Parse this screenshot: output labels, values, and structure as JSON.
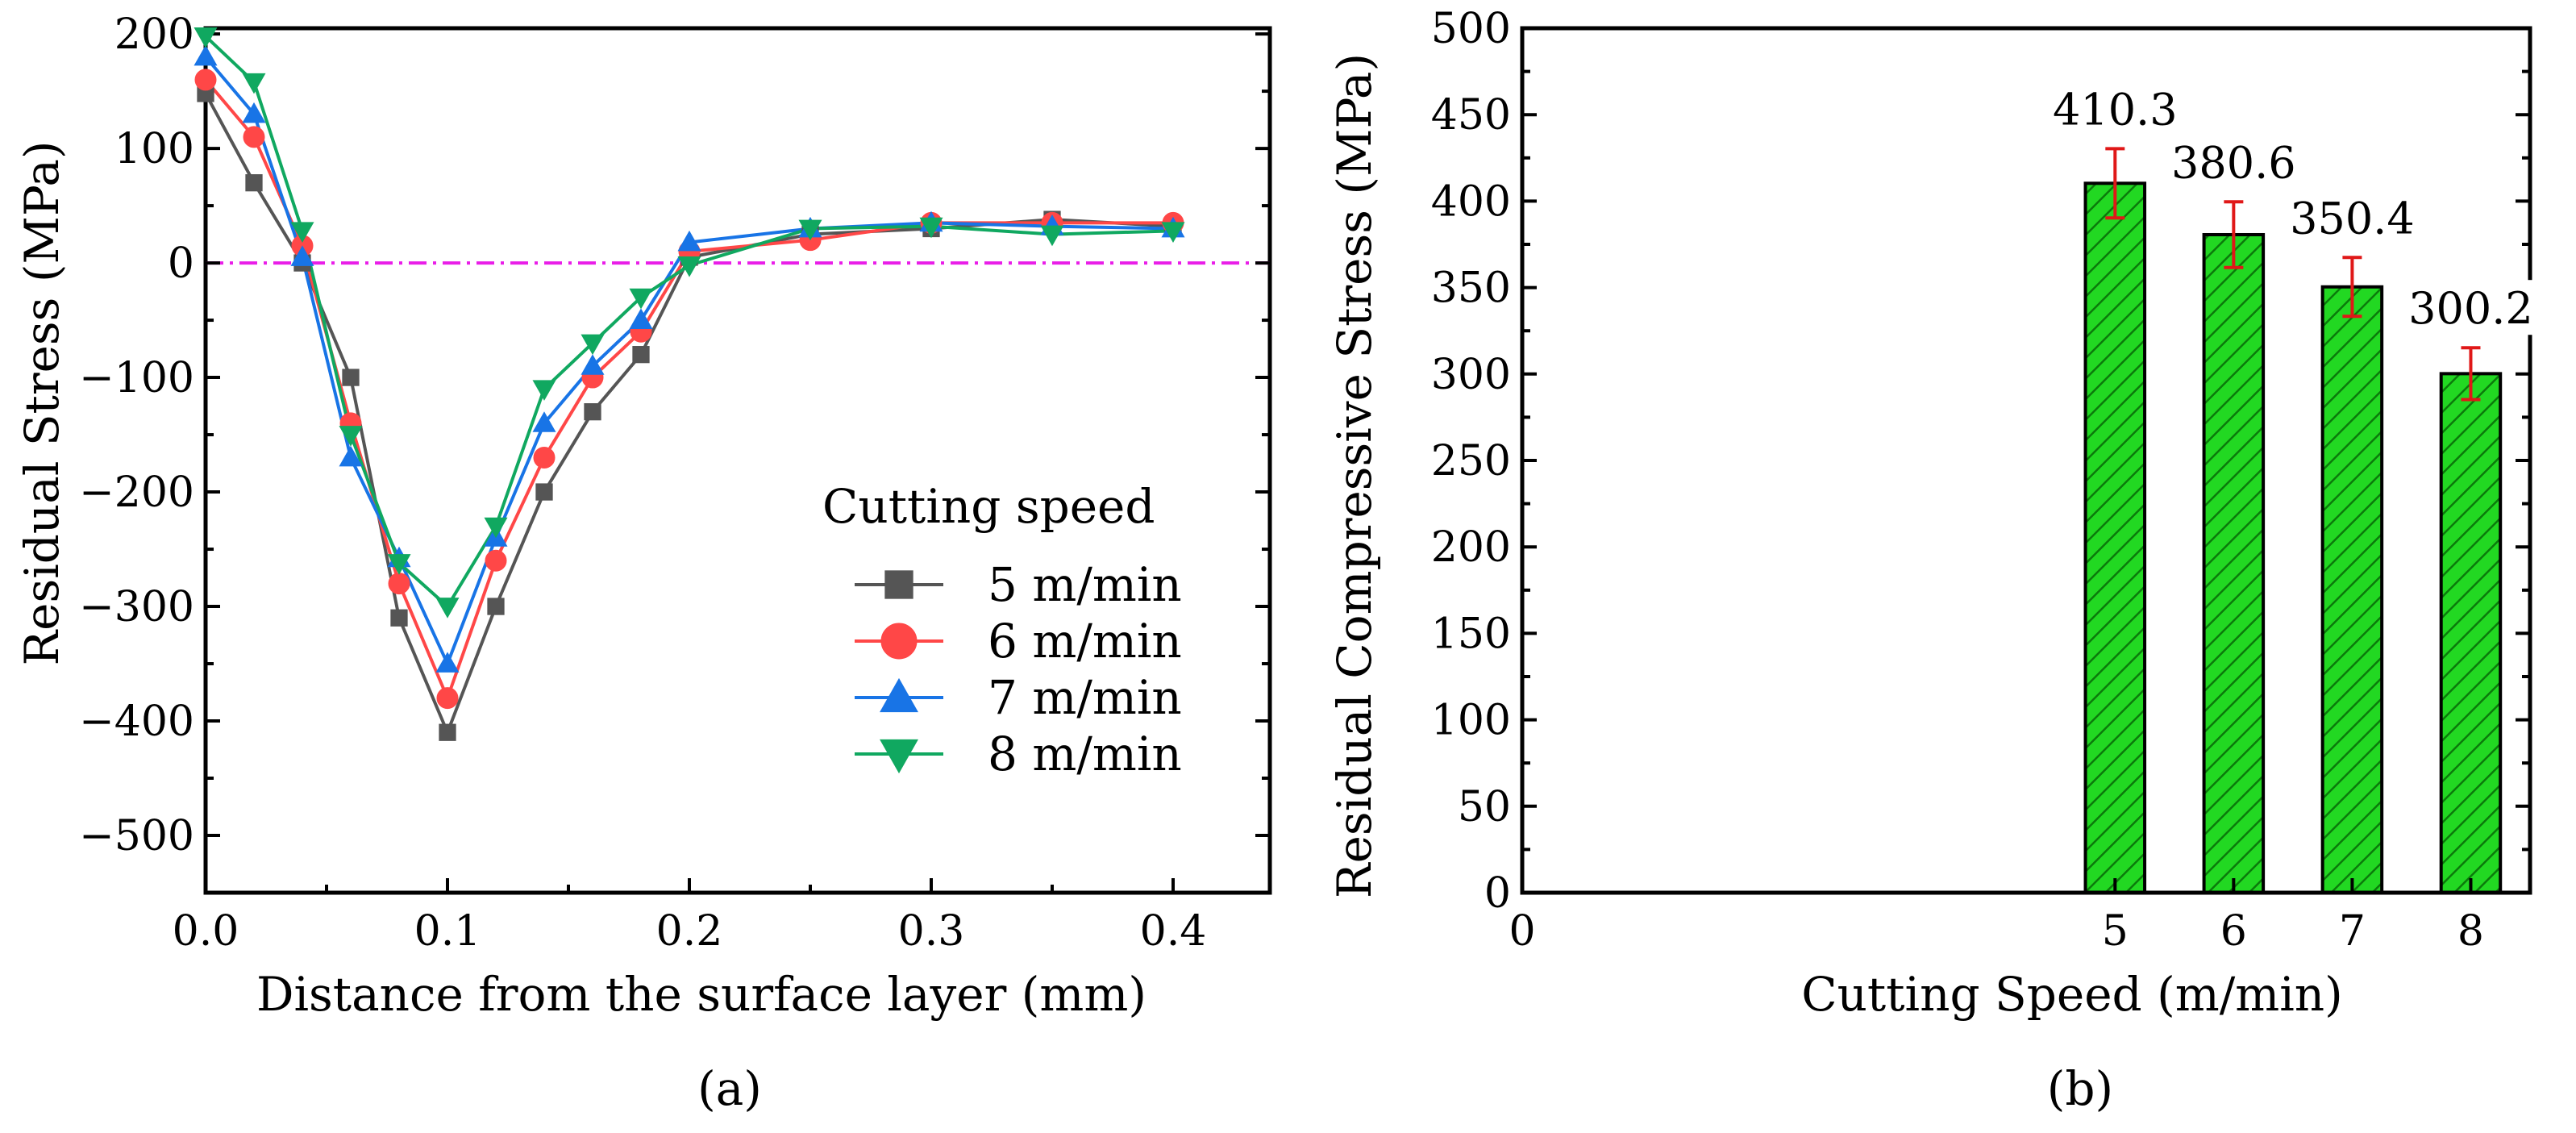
{
  "chart_data": [
    {
      "type": "line",
      "panel_label": "(a)",
      "title": "",
      "xlabel": "Distance from the surface layer (mm)",
      "ylabel": "Residual Stress (MPa)",
      "xlim": [
        0.0,
        0.44
      ],
      "ylim": [
        -550,
        205
      ],
      "xticks": [
        0.0,
        0.1,
        0.2,
        0.3,
        0.4
      ],
      "xtick_labels": [
        "0.0",
        "0.1",
        "0.2",
        "0.3",
        "0.4"
      ],
      "yticks": [
        200,
        100,
        0,
        -100,
        -200,
        -300,
        -400,
        -500
      ],
      "ytick_labels": [
        "200",
        "100",
        "0",
        "−100",
        "−200",
        "−300",
        "−400",
        "−500"
      ],
      "reference_line": {
        "y": 0,
        "color": "#e91ee8",
        "style": "dash-dot"
      },
      "legend": {
        "title": "Cutting speed",
        "placement": "lower-right"
      },
      "series": [
        {
          "name": "5 m/min",
          "marker": "square",
          "color": "#555555",
          "x": [
            0.0,
            0.02,
            0.04,
            0.06,
            0.08,
            0.1,
            0.12,
            0.14,
            0.16,
            0.18,
            0.2,
            0.25,
            0.3,
            0.35,
            0.4
          ],
          "y": [
            148,
            70,
            0,
            -100,
            -310,
            -410,
            -300,
            -200,
            -130,
            -80,
            5,
            25,
            30,
            38,
            32
          ]
        },
        {
          "name": "6 m/min",
          "marker": "circle",
          "color": "#ff4747",
          "x": [
            0.0,
            0.02,
            0.04,
            0.06,
            0.08,
            0.1,
            0.12,
            0.14,
            0.16,
            0.18,
            0.2,
            0.25,
            0.3,
            0.35,
            0.4
          ],
          "y": [
            160,
            110,
            15,
            -140,
            -280,
            -380,
            -260,
            -170,
            -100,
            -60,
            10,
            20,
            35,
            35,
            35
          ]
        },
        {
          "name": "7 m/min",
          "marker": "triangle-up",
          "color": "#1874e6",
          "x": [
            0.0,
            0.02,
            0.04,
            0.06,
            0.08,
            0.1,
            0.12,
            0.14,
            0.16,
            0.18,
            0.2,
            0.25,
            0.3,
            0.35,
            0.4
          ],
          "y": [
            180,
            130,
            5,
            -170,
            -258,
            -350,
            -240,
            -140,
            -90,
            -50,
            18,
            30,
            35,
            32,
            30
          ]
        },
        {
          "name": "8 m/min",
          "marker": "triangle-down",
          "color": "#10a860",
          "x": [
            0.0,
            0.02,
            0.04,
            0.06,
            0.08,
            0.1,
            0.12,
            0.14,
            0.16,
            0.18,
            0.2,
            0.25,
            0.3,
            0.35,
            0.4
          ],
          "y": [
            198,
            158,
            28,
            -150,
            -262,
            -300,
            -230,
            -110,
            -70,
            -30,
            -2,
            30,
            32,
            25,
            28
          ]
        }
      ]
    },
    {
      "type": "bar",
      "panel_label": "(b)",
      "title": "",
      "xlabel": "Cutting Speed (m/min)",
      "ylabel": "Residual Compressive Stress (MPa)",
      "xlim": [
        0,
        8.5
      ],
      "ylim": [
        0,
        500
      ],
      "x_origin_label": "0",
      "yticks": [
        0,
        50,
        100,
        150,
        200,
        250,
        300,
        350,
        400,
        450,
        500
      ],
      "ytick_labels": [
        "0",
        "50",
        "100",
        "150",
        "200",
        "250",
        "300",
        "350",
        "400",
        "450",
        "500"
      ],
      "categories": [
        "5",
        "6",
        "7",
        "8"
      ],
      "values": [
        410.3,
        380.6,
        350.4,
        300.2
      ],
      "value_labels": [
        "410.3",
        "380.6",
        "350.4",
        "300.2"
      ],
      "error": [
        20,
        19,
        17,
        15
      ],
      "bar_color": "#22d822",
      "bar_hatch_color": "#0b7a0b",
      "error_color": "#e01818"
    }
  ]
}
